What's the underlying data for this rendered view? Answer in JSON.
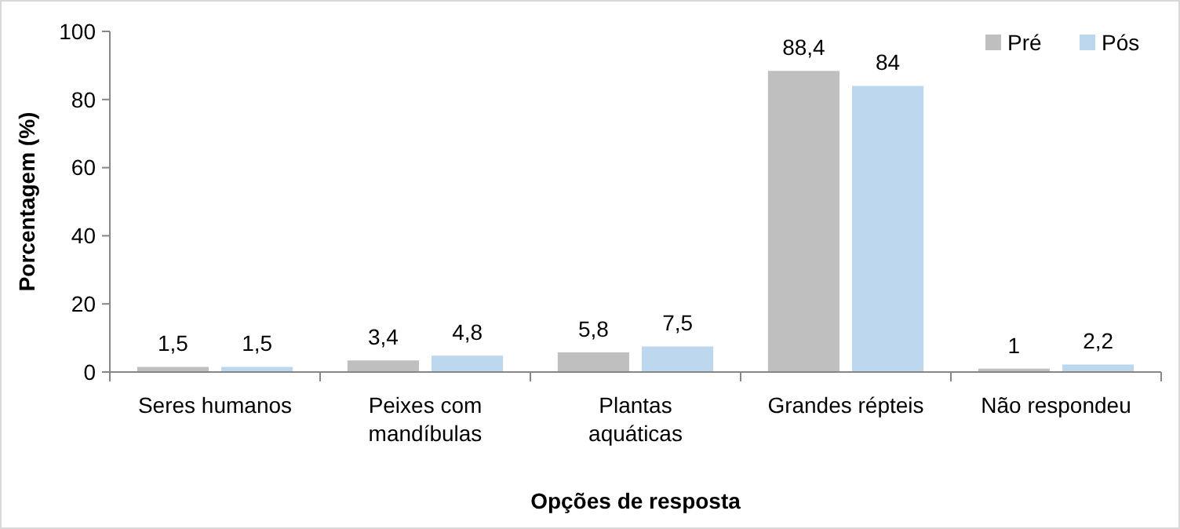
{
  "chart_data": {
    "type": "bar",
    "xlabel": "Opções de resposta",
    "ylabel": "Porcentagem (%)",
    "categories": [
      "Seres humanos",
      "Peixes com mandíbulas",
      "Plantas aquáticas",
      "Grandes répteis",
      "Não respondeu"
    ],
    "series": [
      {
        "name": "Pré",
        "color": "#bfbfbf",
        "values": [
          1.5,
          3.4,
          5.8,
          88.4,
          1
        ],
        "value_labels": [
          "1,5",
          "3,4",
          "5,8",
          "88,4",
          "1"
        ]
      },
      {
        "name": "Pós",
        "color": "#bdd7ee",
        "values": [
          1.5,
          4.8,
          7.5,
          84,
          2.2
        ],
        "value_labels": [
          "1,5",
          "4,8",
          "7,5",
          "84",
          "2,2"
        ]
      }
    ],
    "ylim": [
      0,
      100
    ],
    "yticks": [
      0,
      20,
      40,
      60,
      80,
      100
    ],
    "grid": false,
    "legend": "top right"
  }
}
